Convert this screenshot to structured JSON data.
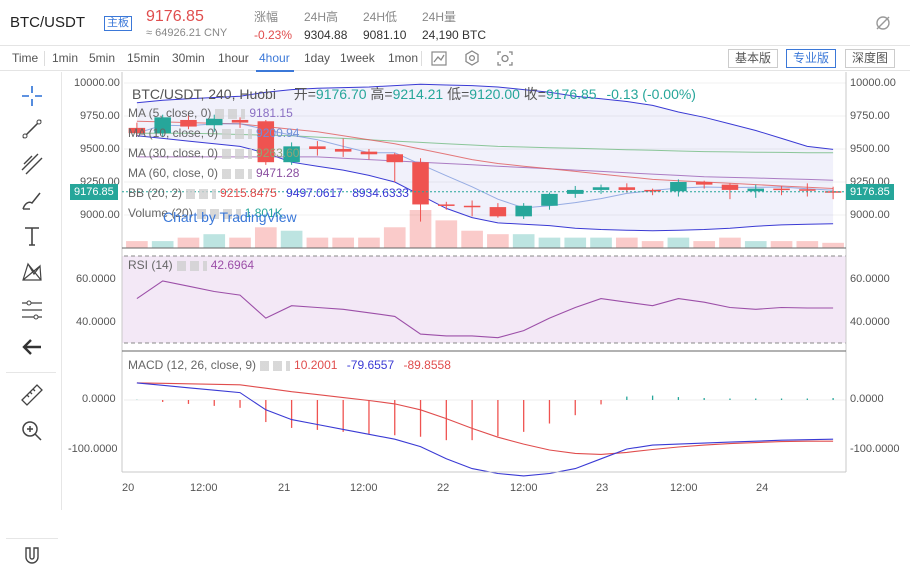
{
  "header": {
    "pair": "BTC/USDT",
    "badge": "主板",
    "price": "9176.85",
    "cny": "≈ 64926.21 CNY",
    "stats": [
      {
        "label": "涨幅",
        "value": "-0.23%",
        "color": "red"
      },
      {
        "label": "24H高",
        "value": "9304.88",
        "color": ""
      },
      {
        "label": "24H低",
        "value": "9081.10",
        "color": ""
      },
      {
        "label": "24H量",
        "value": "24,190 BTC",
        "color": ""
      }
    ],
    "settings_icon": "eye-off-icon"
  },
  "toolbar": {
    "timeframes": [
      "Time",
      "1min",
      "5min",
      "15min",
      "1hour",
      "4hour",
      "1day",
      "1week",
      "1mon"
    ],
    "active": "4hour",
    "icons": [
      "line-chart-icon",
      "indicator-icon",
      "screenshot-icon"
    ],
    "views": [
      "基本版",
      "专业版",
      "深度图"
    ],
    "active_view": "专业版"
  },
  "sidebar": {
    "tools": [
      "crosshair-icon",
      "trendline-icon",
      "parallel-channel-icon",
      "brush-icon",
      "text-icon",
      "pattern-icon",
      "fib-retracement-icon",
      "back-arrow-icon",
      "ruler-icon",
      "zoom-in-icon",
      "magnet-icon"
    ]
  },
  "legend": {
    "symbol": "BTC/USDT, 240, Huobi",
    "open_label": "开=",
    "open": "9176.70",
    "high_label": "高=",
    "high": "9214.21",
    "low_label": "低=",
    "low": "9120.00",
    "close_label": "收=",
    "close": "9176.85",
    "change": "-0.13 (-0.00%)",
    "ma5": {
      "label": "MA (5, close, 0)",
      "value": "9181.15"
    },
    "ma10": {
      "label": "MA (10, close, 0)",
      "value": "9200.94"
    },
    "ma30": {
      "label": "MA (30, close, 0)",
      "value": "9263.60"
    },
    "ma60": {
      "label": "MA (60, close, 0)",
      "value": "9471.28"
    },
    "bb": {
      "label": "BB (20, 2)",
      "v1": "9215.8475",
      "v2": "9497.0617",
      "v3": "8934.6333"
    },
    "volume": {
      "label": "Volume (20)",
      "value": "1.801K"
    },
    "watermark": "Chart by TradingView",
    "rsi": {
      "label": "RSI (14)",
      "value": "42.6964"
    },
    "macd": {
      "label": "MACD (12, 26, close, 9)",
      "v1": "10.2001",
      "v2": "-79.6557",
      "v3": "-89.8558"
    }
  },
  "current_price_tag": "9176.85",
  "price_axis": [
    "10000.00",
    "9750.00",
    "9500.00",
    "9250.00",
    "9000.00"
  ],
  "rsi_axis": [
    "60.0000",
    "40.0000"
  ],
  "macd_axis": [
    "0.0000",
    "-100.0000"
  ],
  "time_axis": [
    "20",
    "12:00",
    "21",
    "12:00",
    "22",
    "12:00",
    "23",
    "12:00",
    "24"
  ],
  "colors": {
    "up": "#26a69a",
    "down": "#ef5350",
    "accent": "#3b78d8",
    "ma5": "#6f8fd8",
    "ma10": "#e05a5a",
    "ma30": "#9a5fb5",
    "ma60": "#5fb36f",
    "bb": "#3a3ad4",
    "rsi": "#9c4fa8",
    "macd": "#3a3ad4",
    "signal": "#e04d4d"
  },
  "chart_data": {
    "type": "candlestick",
    "interval": "240",
    "candles": [
      {
        "o": 9660,
        "c": 9620,
        "h": 9700,
        "l": 9600
      },
      {
        "o": 9620,
        "c": 9740,
        "h": 9760,
        "l": 9590
      },
      {
        "o": 9720,
        "c": 9670,
        "h": 9780,
        "l": 9650
      },
      {
        "o": 9680,
        "c": 9730,
        "h": 9760,
        "l": 9630
      },
      {
        "o": 9720,
        "c": 9700,
        "h": 9740,
        "l": 9660
      },
      {
        "o": 9710,
        "c": 9400,
        "h": 9720,
        "l": 9380
      },
      {
        "o": 9400,
        "c": 9520,
        "h": 9550,
        "l": 9380
      },
      {
        "o": 9520,
        "c": 9500,
        "h": 9560,
        "l": 9450
      },
      {
        "o": 9500,
        "c": 9480,
        "h": 9580,
        "l": 9440
      },
      {
        "o": 9480,
        "c": 9460,
        "h": 9500,
        "l": 9420
      },
      {
        "o": 9460,
        "c": 9400,
        "h": 9470,
        "l": 9250
      },
      {
        "o": 9400,
        "c": 9080,
        "h": 9430,
        "l": 8950
      },
      {
        "o": 9080,
        "c": 9070,
        "h": 9100,
        "l": 9040
      },
      {
        "o": 9070,
        "c": 9060,
        "h": 9110,
        "l": 8990
      },
      {
        "o": 9060,
        "c": 8990,
        "h": 9090,
        "l": 8980
      },
      {
        "o": 8990,
        "c": 9070,
        "h": 9090,
        "l": 8970
      },
      {
        "o": 9070,
        "c": 9160,
        "h": 9170,
        "l": 9040
      },
      {
        "o": 9160,
        "c": 9190,
        "h": 9220,
        "l": 9130
      },
      {
        "o": 9190,
        "c": 9210,
        "h": 9230,
        "l": 9160
      },
      {
        "o": 9210,
        "c": 9190,
        "h": 9240,
        "l": 9170
      },
      {
        "o": 9190,
        "c": 9180,
        "h": 9200,
        "l": 9150
      },
      {
        "o": 9180,
        "c": 9250,
        "h": 9270,
        "l": 9140
      },
      {
        "o": 9250,
        "c": 9230,
        "h": 9260,
        "l": 9200
      },
      {
        "o": 9230,
        "c": 9190,
        "h": 9240,
        "l": 9120
      },
      {
        "o": 9180,
        "c": 9200,
        "h": 9230,
        "l": 9130
      },
      {
        "o": 9200,
        "c": 9190,
        "h": 9220,
        "l": 9150
      },
      {
        "o": 9195,
        "c": 9185,
        "h": 9240,
        "l": 9140
      },
      {
        "o": 9180,
        "c": 9176,
        "h": 9214,
        "l": 9120
      }
    ],
    "volume": [
      2,
      2,
      3,
      4,
      3,
      6,
      5,
      3,
      3,
      3,
      6,
      11,
      8,
      5,
      4,
      4,
      3,
      3,
      3,
      3,
      2,
      3,
      2,
      3,
      2,
      2,
      2,
      1.5
    ],
    "bb_upper": [
      9850,
      9870,
      9880,
      9890,
      9900,
      9930,
      9950,
      9960,
      9965,
      9970,
      9980,
      9990,
      9985,
      9980,
      9970,
      9950,
      9930,
      9900,
      9880,
      9860,
      9830,
      9780,
      9740,
      9690,
      9640,
      9580,
      9520,
      9497
    ],
    "bb_lower": [
      9600,
      9580,
      9560,
      9540,
      9520,
      9470,
      9400,
      9370,
      9340,
      9300,
      9250,
      9150,
      9050,
      8980,
      8940,
      8930,
      8920,
      8900,
      8890,
      8885,
      8880,
      8885,
      8890,
      8900,
      8915,
      8925,
      8930,
      8934
    ],
    "ma10": [
      9710,
      9705,
      9700,
      9695,
      9690,
      9670,
      9650,
      9630,
      9600,
      9570,
      9540,
      9500,
      9460,
      9420,
      9390,
      9370,
      9350,
      9330,
      9310,
      9290,
      9270,
      9260,
      9250,
      9240,
      9230,
      9220,
      9210,
      9201
    ],
    "ma30": [
      9440,
      9440,
      9440,
      9440,
      9440,
      9440,
      9440,
      9440,
      9430,
      9420,
      9410,
      9400,
      9390,
      9380,
      9370,
      9360,
      9350,
      9340,
      9330,
      9320,
      9310,
      9300,
      9290,
      9285,
      9280,
      9275,
      9270,
      9264
    ],
    "ma60": [
      9620,
      9620,
      9620,
      9615,
      9610,
      9605,
      9600,
      9590,
      9580,
      9570,
      9560,
      9550,
      9540,
      9530,
      9520,
      9515,
      9510,
      9505,
      9500,
      9495,
      9490,
      9485,
      9480,
      9478,
      9476,
      9474,
      9472,
      9471
    ],
    "rsi": [
      48,
      58,
      55,
      52,
      50,
      37,
      44,
      43,
      42,
      40,
      38,
      28,
      27,
      27,
      26,
      30,
      37,
      43,
      48,
      46,
      44,
      48,
      46,
      43,
      42,
      43,
      42.7,
      42.7
    ],
    "rsi_ylim": [
      23,
      72
    ],
    "macd_line": [
      35,
      30,
      25,
      20,
      15,
      -20,
      -40,
      -50,
      -60,
      -70,
      -80,
      -95,
      -120,
      -140,
      -150,
      -155,
      -150,
      -140,
      -120,
      -100,
      -92,
      -90,
      -88,
      -86,
      -84,
      -82,
      -81,
      -80
    ],
    "macd_signal": [
      35,
      34,
      33,
      32,
      31,
      24,
      17,
      11,
      5,
      -1,
      -8,
      -20,
      -38,
      -58,
      -76,
      -90,
      -102,
      -109,
      -111,
      -107,
      -101,
      -96,
      -92,
      -89,
      -87,
      -85,
      -84,
      -84
    ],
    "macd_hist": [
      0.5,
      -4,
      -8,
      -12,
      -16,
      -45,
      -57,
      -61,
      -65,
      -69,
      -72,
      -75,
      -82,
      -82,
      -74,
      -65,
      -48,
      -31,
      -9,
      7,
      9,
      6,
      4,
      3,
      3,
      3,
      3,
      4
    ],
    "macd_ylim": [
      -150,
      60
    ]
  }
}
